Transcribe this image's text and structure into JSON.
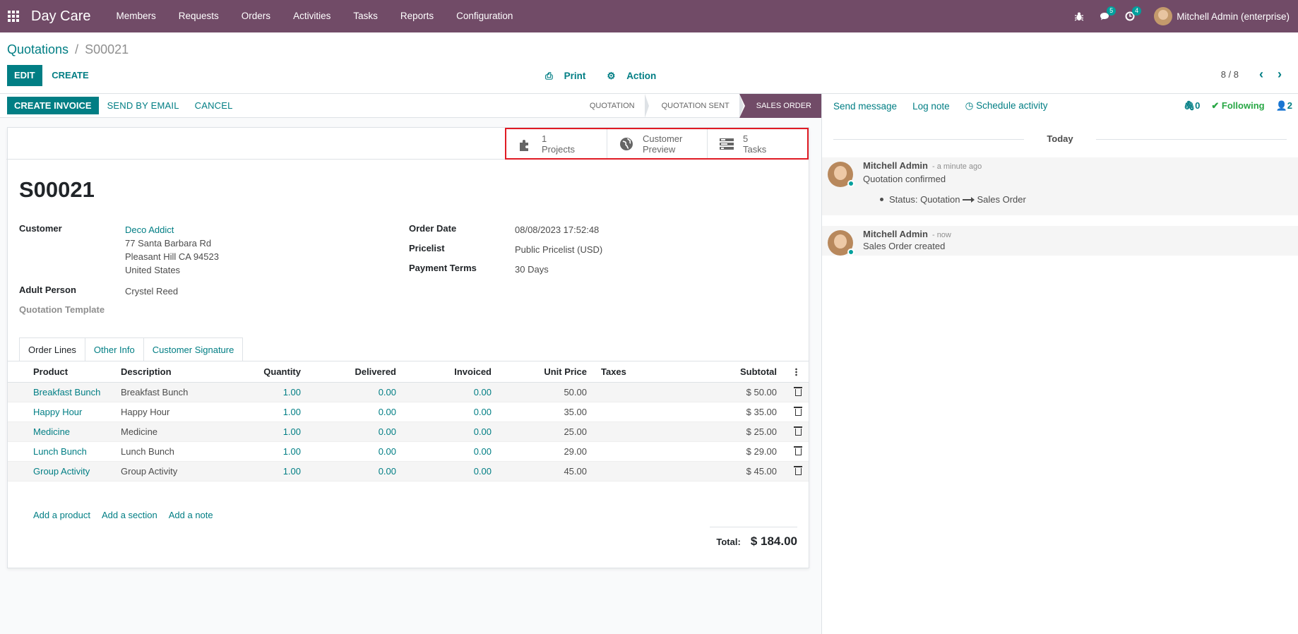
{
  "app": {
    "brand": "Day Care",
    "menu": [
      "Members",
      "Requests",
      "Orders",
      "Activities",
      "Tasks",
      "Reports",
      "Configuration"
    ],
    "systray": {
      "messages_count": "5",
      "activities_count": "4",
      "user_name": "Mitchell Admin (enterprise)"
    }
  },
  "breadcrumb": {
    "parent": "Quotations",
    "separator": "/",
    "current": "S00021"
  },
  "control_panel": {
    "edit_label": "EDIT",
    "create_label": "CREATE",
    "print_label": "Print",
    "action_label": "Action",
    "pager": "8 / 8"
  },
  "statusbar": {
    "buttons": [
      "CREATE INVOICE",
      "SEND BY EMAIL",
      "CANCEL"
    ],
    "stages": [
      "QUOTATION",
      "QUOTATION SENT",
      "SALES ORDER"
    ],
    "active_stage": "SALES ORDER"
  },
  "smart_buttons": {
    "projects": {
      "line1": "1",
      "line2": "Projects",
      "icon": "puzzle-icon"
    },
    "customer_preview": {
      "line1": "Customer",
      "line2": "Preview",
      "icon": "globe-icon"
    },
    "tasks": {
      "line1": "5",
      "line2": "Tasks",
      "icon": "tasks-icon"
    }
  },
  "record": {
    "name": "S00021",
    "customer_label": "Customer",
    "customer_name": "Deco Addict",
    "customer_street": "77 Santa Barbara Rd",
    "customer_city": "Pleasant Hill CA 94523",
    "customer_country": "United States",
    "adult_label": "Adult Person",
    "adult_value": "Crystel Reed",
    "template_label": "Quotation Template",
    "order_date_label": "Order Date",
    "order_date": "08/08/2023 17:52:48",
    "pricelist_label": "Pricelist",
    "pricelist": "Public Pricelist (USD)",
    "payment_terms_label": "Payment Terms",
    "payment_terms": "30 Days"
  },
  "tabs": [
    "Order Lines",
    "Other Info",
    "Customer Signature"
  ],
  "order_lines": {
    "headers": [
      "Product",
      "Description",
      "Quantity",
      "Delivered",
      "Invoiced",
      "Unit Price",
      "Taxes",
      "Subtotal"
    ],
    "rows": [
      {
        "product": "Breakfast Bunch",
        "description": "Breakfast Bunch",
        "quantity": "1.00",
        "delivered": "0.00",
        "invoiced": "0.00",
        "unit_price": "50.00",
        "taxes": "",
        "subtotal": "$ 50.00"
      },
      {
        "product": "Happy Hour",
        "description": "Happy Hour",
        "quantity": "1.00",
        "delivered": "0.00",
        "invoiced": "0.00",
        "unit_price": "35.00",
        "taxes": "",
        "subtotal": "$ 35.00"
      },
      {
        "product": "Medicine",
        "description": "Medicine",
        "quantity": "1.00",
        "delivered": "0.00",
        "invoiced": "0.00",
        "unit_price": "25.00",
        "taxes": "",
        "subtotal": "$ 25.00"
      },
      {
        "product": "Lunch Bunch",
        "description": "Lunch Bunch",
        "quantity": "1.00",
        "delivered": "0.00",
        "invoiced": "0.00",
        "unit_price": "29.00",
        "taxes": "",
        "subtotal": "$ 29.00"
      },
      {
        "product": "Group Activity",
        "description": "Group Activity",
        "quantity": "1.00",
        "delivered": "0.00",
        "invoiced": "0.00",
        "unit_price": "45.00",
        "taxes": "",
        "subtotal": "$ 45.00"
      }
    ],
    "add_product": "Add a product",
    "add_section": "Add a section",
    "add_note": "Add a note",
    "total_label": "Total:",
    "total_value": "$ 184.00"
  },
  "chatter": {
    "send_message": "Send message",
    "log_note": "Log note",
    "schedule_activity": "Schedule activity",
    "attachments": "0",
    "following": "Following",
    "followers": "2",
    "today_label": "Today",
    "messages": [
      {
        "author": "Mitchell Admin",
        "time": "- a minute ago",
        "body": "Quotation confirmed",
        "tracking_field": "Status:",
        "tracking_old": "Quotation",
        "tracking_new": "Sales Order"
      },
      {
        "author": "Mitchell Admin",
        "time": "- now",
        "body": "Sales Order created"
      }
    ]
  },
  "colors": {
    "brand": "#714b67",
    "accent": "#017e84",
    "highlight_border": "#e01b24"
  }
}
